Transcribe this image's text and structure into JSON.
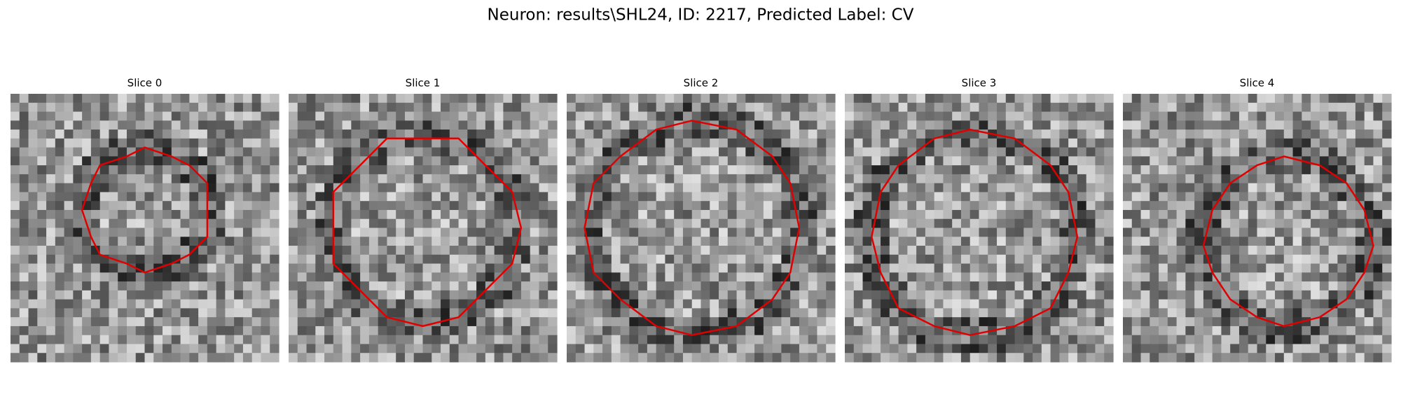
{
  "title": "Neuron: results\\SHL24, ID: 2217, Predicted Label: CV",
  "panels": [
    {
      "title": "Slice 0"
    },
    {
      "title": "Slice 1"
    },
    {
      "title": "Slice 2"
    },
    {
      "title": "Slice 3"
    },
    {
      "title": "Slice 4"
    }
  ]
}
